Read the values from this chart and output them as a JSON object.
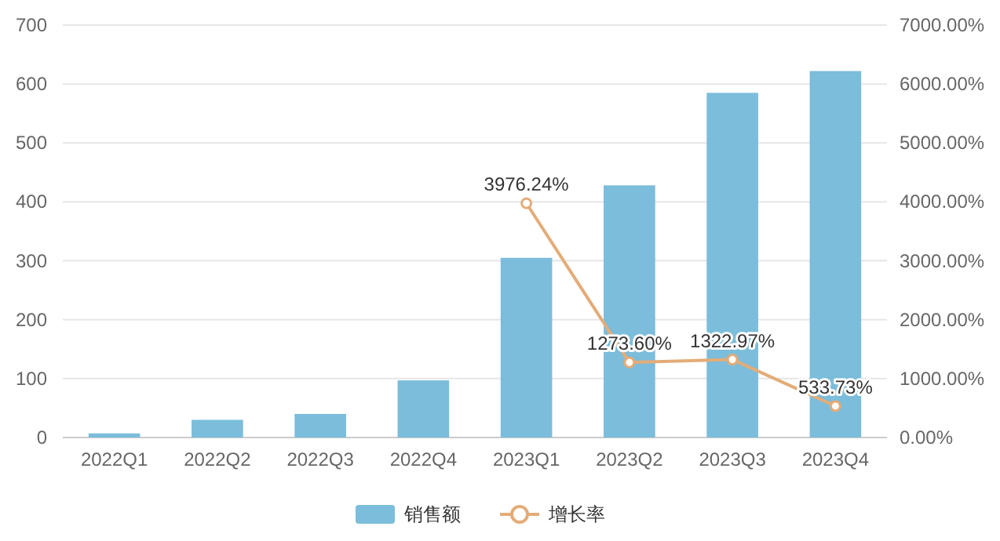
{
  "chart_data": {
    "type": "bar",
    "categories": [
      "2022Q1",
      "2022Q2",
      "2022Q3",
      "2022Q4",
      "2023Q1",
      "2023Q2",
      "2023Q3",
      "2023Q4"
    ],
    "series": [
      {
        "name": "销售额",
        "color": "#7bbddb",
        "values": [
          7,
          30,
          40,
          97,
          305,
          428,
          585,
          622
        ]
      },
      {
        "name": "增长率",
        "type": "line",
        "axis": "y2",
        "color": "#e3ac78",
        "marker": "circle",
        "values": [
          null,
          null,
          null,
          null,
          3976.24,
          1273.6,
          1322.97,
          533.73
        ],
        "value_labels": [
          null,
          null,
          null,
          null,
          "3976.24%",
          "1273.60%",
          "1322.97%",
          "533.73%"
        ]
      }
    ],
    "ylim": [
      0,
      700
    ],
    "yticks": [
      0,
      100,
      200,
      300,
      400,
      500,
      600,
      700
    ],
    "y2lim": [
      0,
      7000
    ],
    "y2ticks": [
      {
        "value": 0,
        "label": "0.00%"
      },
      {
        "value": 1000,
        "label": "1000.00%"
      },
      {
        "value": 2000,
        "label": "2000.00%"
      },
      {
        "value": 3000,
        "label": "3000.00%"
      },
      {
        "value": 4000,
        "label": "4000.00%"
      },
      {
        "value": 5000,
        "label": "5000.00%"
      },
      {
        "value": 6000,
        "label": "6000.00%"
      },
      {
        "value": 7000,
        "label": "7000.00%"
      }
    ],
    "grid": "y",
    "legend": "bottom"
  }
}
